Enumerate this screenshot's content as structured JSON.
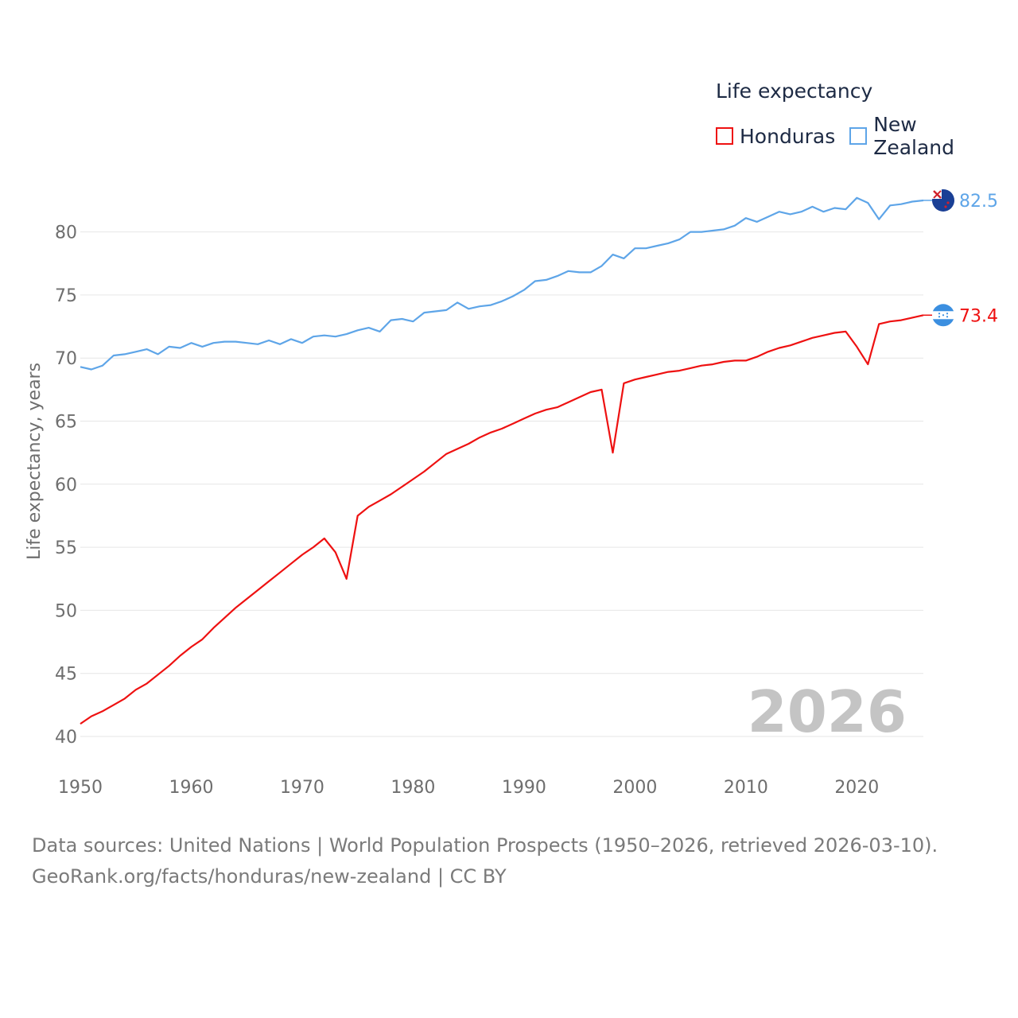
{
  "legend": {
    "title": "Life expectancy",
    "items": [
      {
        "label": "Honduras",
        "color": "#ee1111"
      },
      {
        "label": "New Zealand",
        "color": "#5ea5e8"
      }
    ]
  },
  "source": {
    "line1": "Data sources: United Nations | World Population Prospects (1950–2026, retrieved 2026-03-10).",
    "line2": "GeoRank.org/facts/honduras/new-zealand | CC BY"
  },
  "chart_data": {
    "type": "line",
    "title": "Life expectancy",
    "xlabel": "",
    "ylabel": "Life expectancy, years",
    "current_year_label": "2026",
    "xlim": [
      1950,
      2026
    ],
    "ylim": [
      40,
      84
    ],
    "x_ticks": [
      1950,
      1960,
      1970,
      1980,
      1990,
      2000,
      2010,
      2020
    ],
    "y_ticks": [
      40,
      45,
      50,
      55,
      60,
      65,
      70,
      75,
      80
    ],
    "grid": true,
    "legend_position": "top-right",
    "x": [
      1950,
      1951,
      1952,
      1953,
      1954,
      1955,
      1956,
      1957,
      1958,
      1959,
      1960,
      1961,
      1962,
      1963,
      1964,
      1965,
      1966,
      1967,
      1968,
      1969,
      1970,
      1971,
      1972,
      1973,
      1974,
      1975,
      1976,
      1977,
      1978,
      1979,
      1980,
      1981,
      1982,
      1983,
      1984,
      1985,
      1986,
      1987,
      1988,
      1989,
      1990,
      1991,
      1992,
      1993,
      1994,
      1995,
      1996,
      1997,
      1998,
      1999,
      2000,
      2001,
      2002,
      2003,
      2004,
      2005,
      2006,
      2007,
      2008,
      2009,
      2010,
      2011,
      2012,
      2013,
      2014,
      2015,
      2016,
      2017,
      2018,
      2019,
      2020,
      2021,
      2022,
      2023,
      2024,
      2025,
      2026
    ],
    "series": [
      {
        "name": "Honduras",
        "color": "#ee1111",
        "end_label": "73.4",
        "flag": "honduras-flag",
        "values": [
          41.0,
          41.6,
          42.0,
          42.5,
          43.0,
          43.7,
          44.2,
          44.9,
          45.6,
          46.4,
          47.1,
          47.7,
          48.6,
          49.4,
          50.2,
          50.9,
          51.6,
          52.3,
          53.0,
          53.7,
          54.4,
          55.0,
          55.7,
          54.6,
          52.5,
          57.5,
          58.2,
          58.7,
          59.2,
          59.8,
          60.4,
          61.0,
          61.7,
          62.4,
          62.8,
          63.2,
          63.7,
          64.1,
          64.4,
          64.8,
          65.2,
          65.6,
          65.9,
          66.1,
          66.5,
          66.9,
          67.3,
          67.5,
          62.5,
          68.0,
          68.3,
          68.5,
          68.7,
          68.9,
          69.0,
          69.2,
          69.4,
          69.5,
          69.7,
          69.8,
          69.8,
          70.1,
          70.5,
          70.8,
          71.0,
          71.3,
          71.6,
          71.8,
          72.0,
          72.1,
          70.9,
          69.5,
          72.7,
          72.9,
          73.0,
          73.2,
          73.4
        ]
      },
      {
        "name": "New Zealand",
        "color": "#5ea5e8",
        "end_label": "82.5",
        "flag": "new-zealand-flag",
        "values": [
          69.3,
          69.1,
          69.4,
          70.2,
          70.3,
          70.5,
          70.7,
          70.3,
          70.9,
          70.8,
          71.2,
          70.9,
          71.2,
          71.3,
          71.3,
          71.2,
          71.1,
          71.4,
          71.1,
          71.5,
          71.2,
          71.7,
          71.8,
          71.7,
          71.9,
          72.2,
          72.4,
          72.1,
          73.0,
          73.1,
          72.9,
          73.6,
          73.7,
          73.8,
          74.4,
          73.9,
          74.1,
          74.2,
          74.5,
          74.9,
          75.4,
          76.1,
          76.2,
          76.5,
          76.9,
          76.8,
          76.8,
          77.3,
          78.2,
          77.9,
          78.7,
          78.7,
          78.9,
          79.1,
          79.4,
          80.0,
          80.0,
          80.1,
          80.2,
          80.5,
          81.1,
          80.8,
          81.2,
          81.6,
          81.4,
          81.6,
          82.0,
          81.6,
          81.9,
          81.8,
          82.7,
          82.3,
          81.0,
          82.1,
          82.2,
          82.4,
          82.5
        ]
      }
    ]
  }
}
